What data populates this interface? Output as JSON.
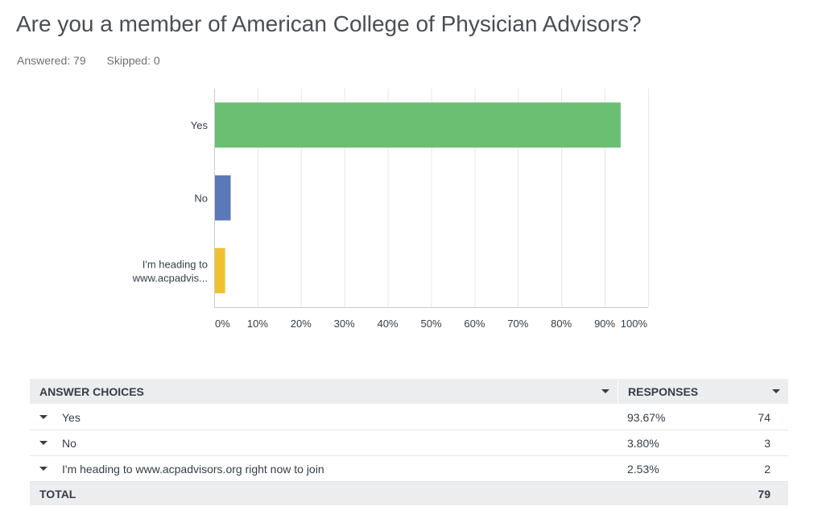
{
  "question": {
    "title": "Are you a member of American College of Physician Advisors?",
    "answered": "Answered: 79",
    "skipped": "Skipped: 0"
  },
  "chart_data": {
    "type": "bar",
    "orientation": "horizontal",
    "categories": [
      "Yes",
      "No",
      "I'm heading to www.acpadvis..."
    ],
    "category_lines": [
      [
        "Yes"
      ],
      [
        "No"
      ],
      [
        "I'm heading to",
        "www.acpadvis..."
      ]
    ],
    "values": [
      93.67,
      3.8,
      2.53
    ],
    "colors": [
      "#6bbf73",
      "#5b78b7",
      "#f0c02f"
    ],
    "xlim": [
      0,
      100
    ],
    "xticks": [
      "0%",
      "10%",
      "20%",
      "30%",
      "40%",
      "50%",
      "60%",
      "70%",
      "80%",
      "90%",
      "100%"
    ],
    "grid": true
  },
  "table": {
    "header_choice": "ANSWER CHOICES",
    "header_responses": "RESPONSES",
    "rows": [
      {
        "choice": "Yes",
        "percent": "93.67%",
        "count": "74"
      },
      {
        "choice": "No",
        "percent": "3.80%",
        "count": "3"
      },
      {
        "choice": "I'm heading to www.acpadvisors.org right now to join",
        "percent": "2.53%",
        "count": "2"
      }
    ],
    "total_label": "TOTAL",
    "total_count": "79"
  },
  "icons": {
    "sort": "caret-down-icon",
    "expand": "caret-down-icon"
  }
}
